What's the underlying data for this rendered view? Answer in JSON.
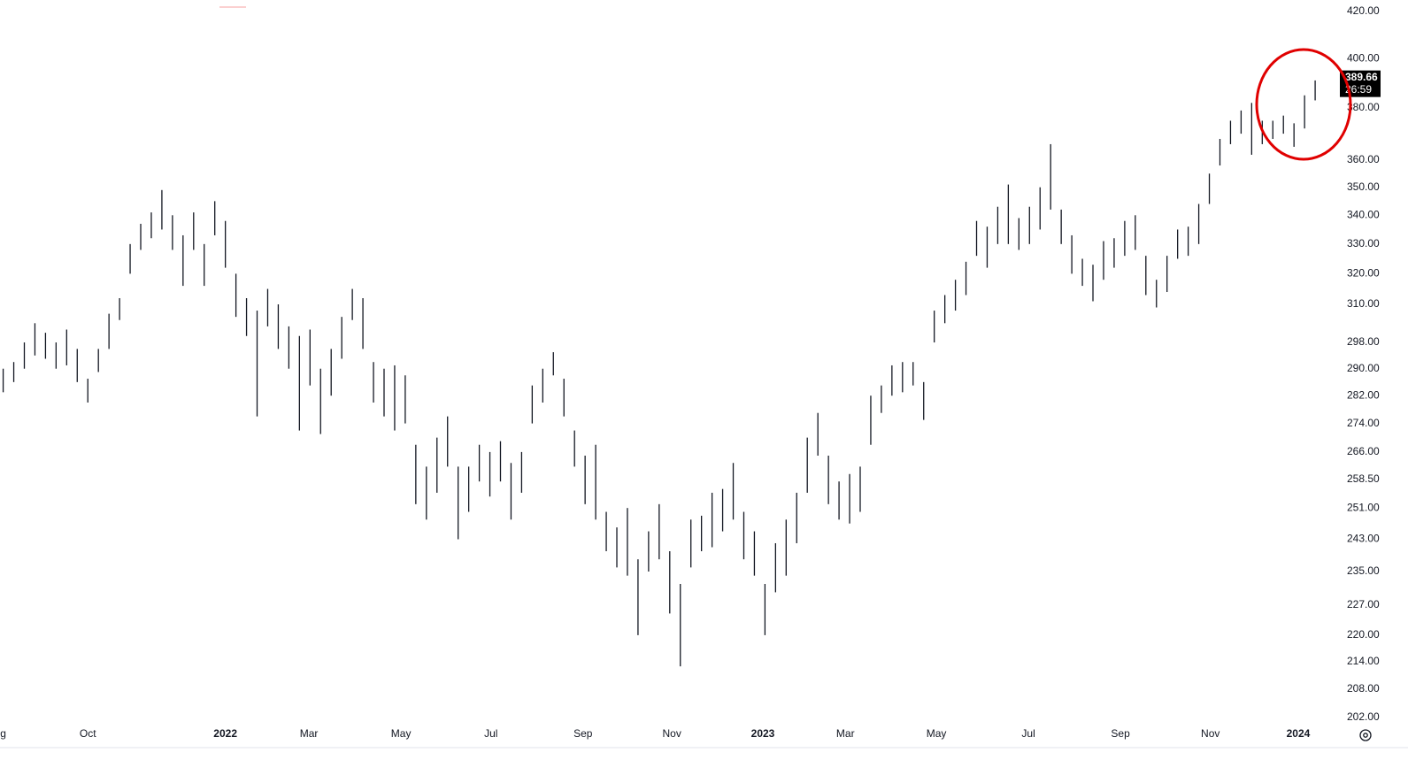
{
  "chart_data": {
    "type": "ohlc",
    "log_scale": true,
    "color": "#131722",
    "high": [
      290,
      292,
      298,
      304,
      301,
      298,
      302,
      296,
      287,
      296,
      307,
      312,
      330,
      337,
      341,
      349,
      340,
      333,
      341,
      330,
      345,
      338,
      320,
      312,
      308,
      315,
      310,
      303,
      300,
      302,
      290,
      296,
      306,
      315,
      312,
      292,
      290,
      291,
      288,
      268,
      262,
      270,
      276,
      262,
      262,
      268,
      266,
      269,
      263,
      266,
      285,
      290,
      295,
      287,
      272,
      265,
      268,
      250,
      246,
      251,
      238,
      245,
      252,
      240,
      232,
      248,
      249,
      255,
      256,
      263,
      250,
      245,
      232,
      242,
      248,
      255,
      270,
      277,
      265,
      258,
      260,
      262,
      282,
      285,
      291,
      292,
      292,
      286,
      308,
      313,
      318,
      324,
      338,
      336,
      343,
      351,
      339,
      343,
      350,
      366,
      342,
      333,
      325,
      323,
      331,
      332,
      338,
      340,
      326,
      318,
      326,
      335,
      336,
      344,
      355,
      368,
      375,
      379,
      382,
      375,
      375,
      377,
      374,
      385,
      391
    ],
    "low": [
      283,
      286,
      290,
      294,
      293,
      290,
      291,
      286,
      280,
      289,
      296,
      305,
      320,
      328,
      332,
      335,
      328,
      316,
      328,
      316,
      333,
      322,
      306,
      300,
      276,
      303,
      296,
      290,
      272,
      285,
      271,
      282,
      293,
      305,
      296,
      280,
      276,
      272,
      274,
      252,
      248,
      255,
      262,
      243,
      250,
      258,
      254,
      258,
      248,
      255,
      274,
      280,
      288,
      276,
      262,
      252,
      248,
      240,
      236,
      234,
      220,
      235,
      238,
      225,
      213,
      236,
      240,
      241,
      245,
      248,
      238,
      234,
      220,
      230,
      234,
      242,
      255,
      265,
      252,
      248,
      247,
      250,
      268,
      277,
      282,
      283,
      285,
      275,
      298,
      304,
      308,
      313,
      326,
      322,
      330,
      330,
      328,
      330,
      335,
      342,
      330,
      320,
      316,
      311,
      318,
      322,
      326,
      328,
      313,
      309,
      314,
      325,
      326,
      330,
      344,
      358,
      366,
      370,
      362,
      366,
      368,
      370,
      365,
      372,
      383
    ],
    "xlim": [
      -0.3,
      126
    ],
    "ylim": [
      200.7,
      425
    ],
    "xticks": [
      {
        "value": 0,
        "label": "g"
      },
      {
        "value": 8,
        "label": "Oct"
      },
      {
        "value": 21,
        "label": "2022"
      },
      {
        "value": 28.9,
        "label": "Mar"
      },
      {
        "value": 37.6,
        "label": "May"
      },
      {
        "value": 46.1,
        "label": "Jul"
      },
      {
        "value": 54.8,
        "label": "Sep"
      },
      {
        "value": 63.2,
        "label": "Nov"
      },
      {
        "value": 71.8,
        "label": "2023"
      },
      {
        "value": 79.6,
        "label": "Mar"
      },
      {
        "value": 88.2,
        "label": "May"
      },
      {
        "value": 96.9,
        "label": "Jul"
      },
      {
        "value": 105.6,
        "label": "Sep"
      },
      {
        "value": 114.1,
        "label": "Nov"
      },
      {
        "value": 122.4,
        "label": "2024"
      }
    ],
    "yticks": [
      {
        "value": 420,
        "label": "420.00"
      },
      {
        "value": 400,
        "label": "400.00"
      },
      {
        "value": 380,
        "label": "380.00"
      },
      {
        "value": 360,
        "label": "360.00"
      },
      {
        "value": 350,
        "label": "350.00"
      },
      {
        "value": 340,
        "label": "340.00"
      },
      {
        "value": 330,
        "label": "330.00"
      },
      {
        "value": 320,
        "label": "320.00"
      },
      {
        "value": 310,
        "label": "310.00"
      },
      {
        "value": 298,
        "label": "298.00"
      },
      {
        "value": 290,
        "label": "290.00"
      },
      {
        "value": 282,
        "label": "282.00"
      },
      {
        "value": 274,
        "label": "274.00"
      },
      {
        "value": 266,
        "label": "266.00"
      },
      {
        "value": 258.5,
        "label": "258.50"
      },
      {
        "value": 251,
        "label": "251.00"
      },
      {
        "value": 243,
        "label": "243.00"
      },
      {
        "value": 235,
        "label": "235.00"
      },
      {
        "value": 227,
        "label": "227.00"
      },
      {
        "value": 220,
        "label": "220.00"
      },
      {
        "value": 214,
        "label": "214.00"
      },
      {
        "value": 208,
        "label": "208.00"
      },
      {
        "value": 202,
        "label": "202.00"
      }
    ],
    "last_price": 389.66,
    "countdown": "26:59"
  }
}
